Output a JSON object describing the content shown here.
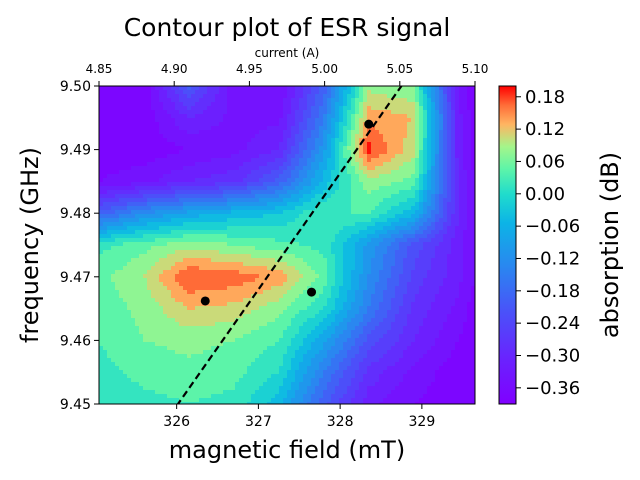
{
  "chart_data": {
    "type": "heatmap",
    "subtype": "filled-contour",
    "title": "Contour plot of ESR signal",
    "xlabel": "magnetic field (mT)",
    "ylabel": "frequency (GHz)",
    "top_xlabel": "current (A)",
    "colorbar_label": "absorption (dB)",
    "colormap": "rainbow",
    "xlim": [
      325.05,
      329.65
    ],
    "ylim": [
      9.45,
      9.5
    ],
    "top_xlim": [
      4.85,
      5.1
    ],
    "x_ticks": [
      "326",
      "327",
      "328",
      "329"
    ],
    "y_ticks": [
      "9.45",
      "9.46",
      "9.47",
      "9.48",
      "9.49",
      "9.50"
    ],
    "top_ticks": [
      "4.85",
      "4.90",
      "4.95",
      "5.00",
      "5.05",
      "5.10"
    ],
    "colorbar_range": [
      -0.39,
      0.2
    ],
    "colorbar_ticks": [
      "0.18",
      "0.12",
      "0.06",
      "0.00",
      "−0.06",
      "−0.12",
      "−0.18",
      "−0.24",
      "−0.30",
      "−0.36"
    ],
    "peaks": [
      {
        "x": 326.35,
        "y": 9.4662
      },
      {
        "x": 327.65,
        "y": 9.4676
      },
      {
        "x": 328.35,
        "y": 9.494
      }
    ],
    "resonance_line": {
      "style": "dashed",
      "points": [
        [
          326.0,
          9.4497
        ],
        [
          328.75,
          9.5
        ]
      ]
    },
    "field_samples_x": [
      325.05,
      325.6,
      326.15,
      326.7,
      327.25,
      327.8,
      328.35,
      328.9,
      329.45,
      329.65
    ],
    "freq_samples_y": [
      9.45,
      9.455,
      9.46,
      9.465,
      9.47,
      9.475,
      9.48,
      9.485,
      9.49,
      9.495,
      9.5
    ],
    "absorption_grid": [
      [
        0.0,
        0.02,
        0.03,
        0.02,
        -0.05,
        -0.2,
        -0.32,
        -0.36,
        -0.38,
        -0.38
      ],
      [
        0.02,
        0.04,
        0.05,
        0.04,
        0.0,
        -0.15,
        -0.28,
        -0.34,
        -0.38,
        -0.38
      ],
      [
        0.03,
        0.06,
        0.07,
        0.06,
        0.03,
        -0.08,
        -0.22,
        -0.3,
        -0.36,
        -0.38
      ],
      [
        0.04,
        0.07,
        0.12,
        0.11,
        0.07,
        0.0,
        -0.15,
        -0.28,
        -0.34,
        -0.38
      ],
      [
        0.05,
        0.09,
        0.18,
        0.17,
        0.14,
        0.05,
        -0.12,
        -0.25,
        -0.32,
        -0.36
      ],
      [
        0.02,
        0.05,
        0.08,
        0.06,
        0.04,
        0.02,
        -0.1,
        -0.22,
        -0.32,
        -0.36
      ],
      [
        -0.2,
        -0.12,
        -0.08,
        -0.05,
        -0.03,
        0.03,
        0.03,
        -0.05,
        -0.3,
        -0.36
      ],
      [
        -0.36,
        -0.34,
        -0.3,
        -0.28,
        -0.2,
        -0.05,
        0.08,
        0.05,
        -0.3,
        -0.36
      ],
      [
        -0.38,
        -0.38,
        -0.36,
        -0.34,
        -0.3,
        -0.1,
        0.19,
        0.1,
        -0.32,
        -0.38
      ],
      [
        -0.38,
        -0.38,
        -0.3,
        -0.34,
        -0.34,
        -0.15,
        0.14,
        0.12,
        -0.32,
        -0.38
      ],
      [
        -0.38,
        -0.38,
        -0.2,
        -0.35,
        -0.36,
        -0.2,
        0.08,
        0.06,
        -0.34,
        -0.38
      ]
    ]
  }
}
